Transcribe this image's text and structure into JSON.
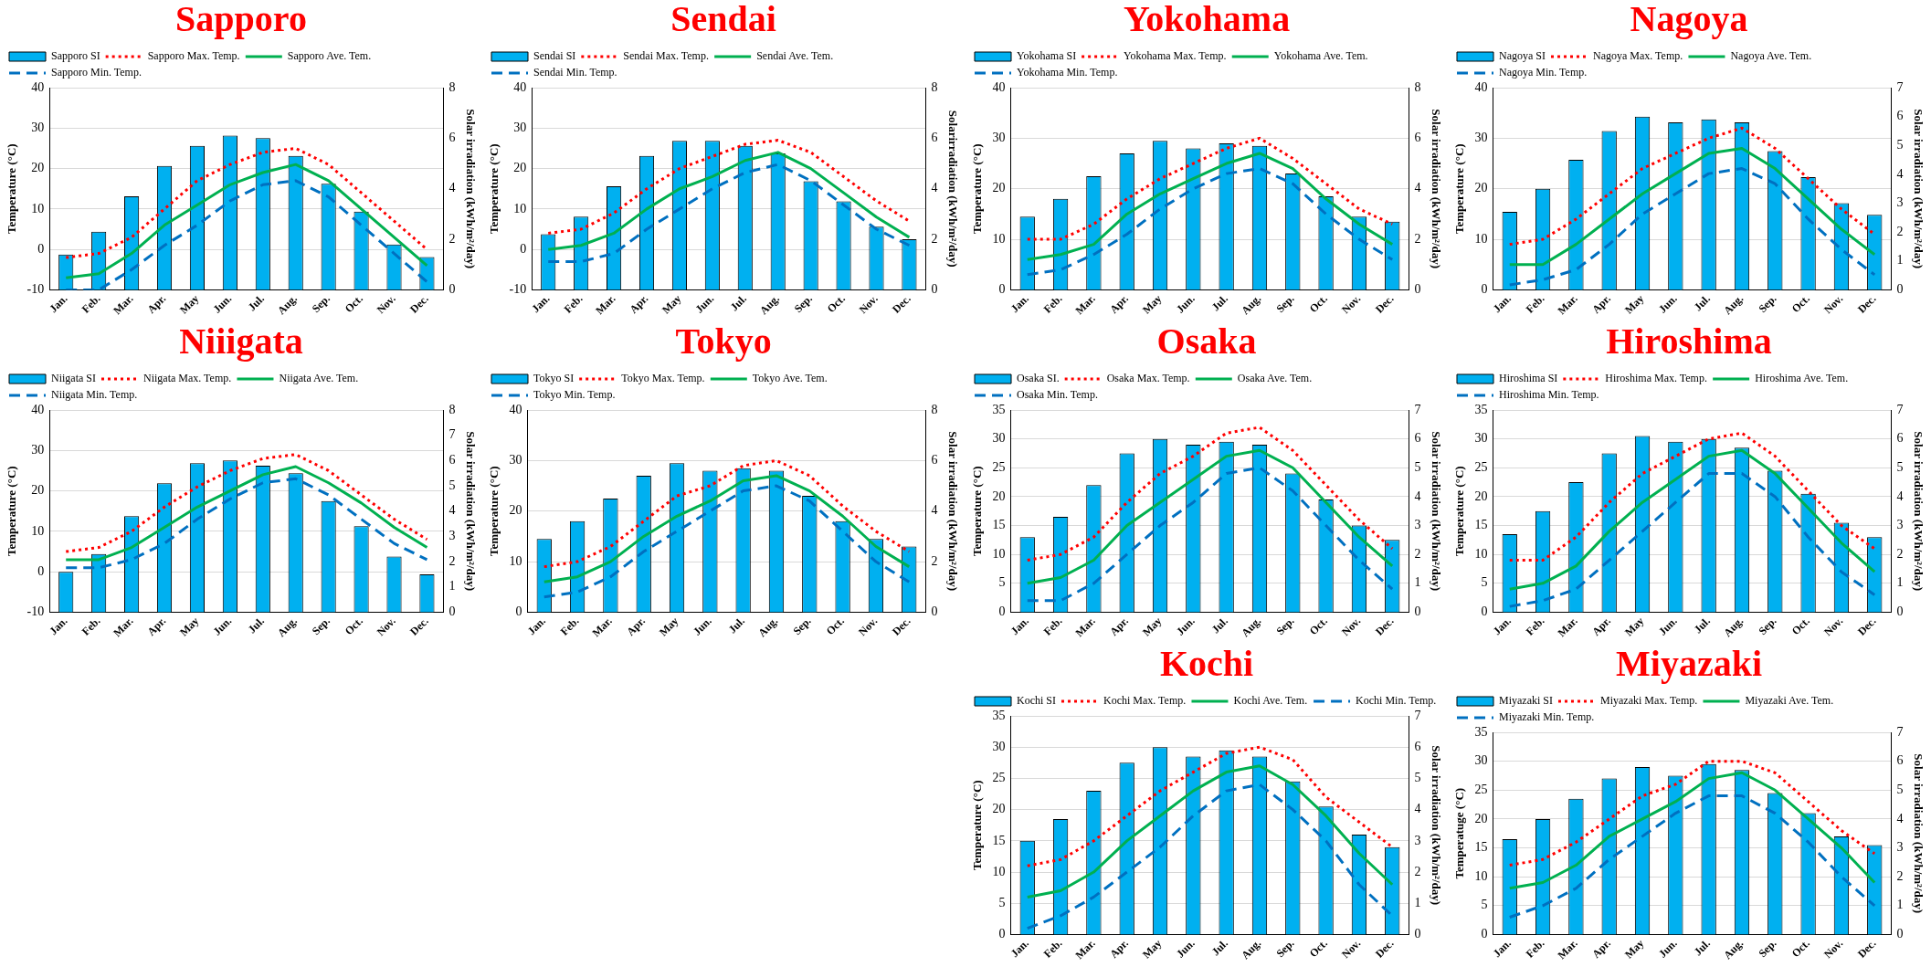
{
  "chart_data": [
    {
      "type": "bar",
      "title": "Sapporo",
      "categories": [
        "Jan.",
        "Feb.",
        "Mar.",
        "Apr.",
        "May",
        "Jun.",
        "Jul.",
        "Aug.",
        "Sep.",
        "Oct.",
        "Nov.",
        "Dec."
      ],
      "ylabel": "Temperature (°C)",
      "y2label": "Solar irradiation (kWh/m²/day)",
      "ylim": [
        -10,
        40
      ],
      "yticks": [
        -10,
        0,
        10,
        20,
        30,
        40
      ],
      "y2lim": [
        0,
        8
      ],
      "y2ticks": [
        0,
        2,
        4,
        6,
        8
      ],
      "grid": "y",
      "legend": "top",
      "series": [
        {
          "name": "Sapporo SI",
          "axis": "y2",
          "color": "#00b0f0",
          "values": [
            1.4,
            2.3,
            3.7,
            4.9,
            5.7,
            6.1,
            6.0,
            5.3,
            4.2,
            3.1,
            1.8,
            1.3
          ]
        },
        {
          "name": "Sapporo Max. Temp.",
          "type": "line",
          "line_style": "dotted",
          "color": "#ff0000",
          "values": [
            -2,
            -1,
            3,
            10,
            17,
            21,
            24,
            25,
            21,
            14,
            7,
            0
          ]
        },
        {
          "name": "Sapporo Ave. Tem.",
          "type": "line",
          "line_style": "solid",
          "color": "#00b050",
          "values": [
            -7,
            -6,
            -1,
            6,
            11,
            16,
            19,
            21,
            17,
            10,
            3,
            -4
          ]
        },
        {
          "name": "Sapporo Min. Temp.",
          "type": "line",
          "line_style": "dashed",
          "color": "#0070c0",
          "values": [
            -10,
            -10,
            -5,
            1,
            6,
            12,
            16,
            17,
            13,
            6,
            -1,
            -8
          ]
        }
      ]
    },
    {
      "type": "bar",
      "title": "Sendai",
      "categories": [
        "Jan.",
        "Feb.",
        "Mar.",
        "Apr.",
        "May",
        "Jun.",
        "Jul.",
        "Aug.",
        "Sep.",
        "Oct.",
        "Nov.",
        "Dec."
      ],
      "ylabel": "Temperature (°C)",
      "y2label": "Solarirradiation (kWh/m²/day)",
      "ylim": [
        -10,
        40
      ],
      "yticks": [
        -10,
        0,
        10,
        20,
        30,
        40
      ],
      "y2lim": [
        0,
        8
      ],
      "y2ticks": [
        0,
        2,
        4,
        6,
        8
      ],
      "grid": "y",
      "legend": "top",
      "series": [
        {
          "name": "Sendai SI",
          "axis": "y2",
          "color": "#00b0f0",
          "values": [
            2.2,
            2.9,
            4.1,
            5.3,
            5.9,
            5.9,
            5.7,
            5.4,
            4.3,
            3.5,
            2.5,
            2.0
          ]
        },
        {
          "name": "Sendai Max. Temp.",
          "type": "line",
          "line_style": "dotted",
          "color": "#ff0000",
          "values": [
            4,
            5,
            9,
            15,
            20,
            23,
            26,
            27,
            24,
            18,
            12,
            7
          ]
        },
        {
          "name": "Sendai Ave. Tem.",
          "type": "line",
          "line_style": "solid",
          "color": "#00b050",
          "values": [
            0,
            1,
            4,
            10,
            15,
            18,
            22,
            24,
            20,
            14,
            8,
            3
          ]
        },
        {
          "name": "Sendai Min. Temp.",
          "type": "line",
          "line_style": "dashed",
          "color": "#0070c0",
          "values": [
            -3,
            -3,
            -1,
            5,
            10,
            15,
            19,
            21,
            17,
            11,
            5,
            1
          ]
        }
      ]
    },
    {
      "type": "bar",
      "title": "Yokohama",
      "categories": [
        "Jan.",
        "Feb.",
        "Mar.",
        "Apr.",
        "May",
        "Jun.",
        "Jul.",
        "Aug.",
        "Sep.",
        "Oct.",
        "Nov.",
        "Dec."
      ],
      "ylabel": "Temperature (°C)",
      "y2label": "Solar irradiation (kWh/m²/day)",
      "ylim": [
        0,
        40
      ],
      "yticks": [
        0,
        10,
        20,
        30,
        40
      ],
      "y2lim": [
        0,
        8
      ],
      "y2ticks": [
        0,
        2,
        4,
        6,
        8
      ],
      "grid": "y",
      "legend": "top",
      "series": [
        {
          "name": "Yokohama SI",
          "axis": "y2",
          "color": "#00b0f0",
          "values": [
            2.9,
            3.6,
            4.5,
            5.4,
            5.9,
            5.6,
            5.8,
            5.7,
            4.6,
            3.7,
            2.9,
            2.7
          ]
        },
        {
          "name": "Yokohama Max. Temp.",
          "type": "line",
          "line_style": "dotted",
          "color": "#ff0000",
          "values": [
            10,
            10,
            13,
            18,
            22,
            25,
            28,
            30,
            26,
            21,
            16,
            13
          ]
        },
        {
          "name": "Yokohama Ave. Tem.",
          "type": "line",
          "line_style": "solid",
          "color": "#00b050",
          "values": [
            6,
            7,
            9,
            15,
            19,
            22,
            25,
            27,
            24,
            18,
            13,
            9
          ]
        },
        {
          "name": "Yokohama Min. Temp.",
          "type": "line",
          "line_style": "dashed",
          "color": "#0070c0",
          "values": [
            3,
            4,
            7,
            11,
            16,
            20,
            23,
            24,
            21,
            15,
            10,
            6
          ]
        }
      ]
    },
    {
      "type": "bar",
      "title": "Nagoya",
      "categories": [
        "Jan.",
        "Feb.",
        "Mar.",
        "Apr.",
        "May",
        "Jun.",
        "Jul.",
        "Aug.",
        "Sep.",
        "Oct.",
        "Nov.",
        "Dec."
      ],
      "ylabel": "Temperature (°C)",
      "y2label": "Solar irradiation (kWh/m²/day)",
      "ylim": [
        0,
        40
      ],
      "yticks": [
        0,
        10,
        20,
        30,
        40
      ],
      "y2lim": [
        0,
        7
      ],
      "y2ticks": [
        0,
        1,
        2,
        3,
        4,
        5,
        6,
        7
      ],
      "grid": "y",
      "legend": "top",
      "series": [
        {
          "name": "Nagoya SI",
          "axis": "y2",
          "color": "#00b0f0",
          "values": [
            2.7,
            3.5,
            4.5,
            5.5,
            6.0,
            5.8,
            5.9,
            5.8,
            4.8,
            3.9,
            3.0,
            2.6
          ]
        },
        {
          "name": "Nagoya Max. Temp.",
          "type": "line",
          "line_style": "dotted",
          "color": "#ff0000",
          "values": [
            9,
            10,
            14,
            19,
            24,
            27,
            30,
            32,
            28,
            22,
            16,
            11
          ]
        },
        {
          "name": "Nagoya Ave. Tem.",
          "type": "line",
          "line_style": "solid",
          "color": "#00b050",
          "values": [
            5,
            5,
            9,
            14,
            19,
            23,
            27,
            28,
            24,
            18,
            12,
            7
          ]
        },
        {
          "name": "Nagoya Min. Temp.",
          "type": "line",
          "line_style": "dashed",
          "color": "#0070c0",
          "values": [
            1,
            2,
            4,
            9,
            15,
            19,
            23,
            24,
            21,
            14,
            8,
            3
          ]
        }
      ]
    },
    {
      "type": "bar",
      "title": "Niiigata",
      "categories": [
        "Jan.",
        "Feb.",
        "Mar.",
        "Apr.",
        "May",
        "Jun.",
        "Jul.",
        "Aug.",
        "Sep.",
        "Oct.",
        "Nov.",
        "Dec."
      ],
      "ylabel": "Temperature (°C)",
      "y2label": "Solar irradiation (kWh/m²/day)",
      "ylim": [
        -10,
        40
      ],
      "yticks": [
        -10,
        0,
        10,
        20,
        30,
        40
      ],
      "y2lim": [
        0,
        8
      ],
      "y2ticks": [
        0,
        1,
        2,
        3,
        4,
        5,
        6,
        7,
        8
      ],
      "grid": "y",
      "legend": "top",
      "series": [
        {
          "name": "Niigata SI",
          "axis": "y2",
          "color": "#00b0f0",
          "values": [
            1.6,
            2.3,
            3.8,
            5.1,
            5.9,
            6.0,
            5.8,
            5.5,
            4.4,
            3.4,
            2.2,
            1.5
          ]
        },
        {
          "name": "Niigata Max. Temp.",
          "type": "line",
          "line_style": "dotted",
          "color": "#ff0000",
          "values": [
            5,
            6,
            10,
            16,
            21,
            25,
            28,
            29,
            25,
            19,
            13,
            8
          ]
        },
        {
          "name": "Niigata Ave. Tem.",
          "type": "line",
          "line_style": "solid",
          "color": "#00b050",
          "values": [
            3,
            3,
            6,
            11,
            16,
            20,
            24,
            26,
            22,
            17,
            11,
            6
          ]
        },
        {
          "name": "Niigata Min. Temp.",
          "type": "line",
          "line_style": "dashed",
          "color": "#0070c0",
          "values": [
            1,
            1,
            3,
            7,
            13,
            18,
            22,
            23,
            19,
            13,
            7,
            3
          ]
        }
      ]
    },
    {
      "type": "bar",
      "title": "Tokyo",
      "categories": [
        "Jan.",
        "Feb.",
        "Mar.",
        "Apr.",
        "May",
        "Jun.",
        "Jul.",
        "Aug.",
        "Sep.",
        "Oct.",
        "Nov.",
        "Dec."
      ],
      "ylabel": "Temperature (°C)",
      "y2label": "Solar irradiation (kWh/m²/day)",
      "ylim": [
        0,
        40
      ],
      "yticks": [
        0,
        10,
        20,
        30,
        40
      ],
      "y2lim": [
        0,
        8
      ],
      "y2ticks": [
        0,
        2,
        4,
        6,
        8
      ],
      "grid": "y",
      "legend": "top",
      "series": [
        {
          "name": "Tokyo SI",
          "axis": "y2",
          "color": "#00b0f0",
          "values": [
            2.9,
            3.6,
            4.5,
            5.4,
            5.9,
            5.6,
            5.7,
            5.6,
            4.6,
            3.6,
            2.9,
            2.6
          ]
        },
        {
          "name": "Tokyo Max. Temp.",
          "type": "line",
          "line_style": "dotted",
          "color": "#ff0000",
          "values": [
            9,
            10,
            13,
            18,
            23,
            25,
            29,
            30,
            27,
            21,
            16,
            12
          ]
        },
        {
          "name": "Tokyo Ave. Tem.",
          "type": "line",
          "line_style": "solid",
          "color": "#00b050",
          "values": [
            6,
            7,
            10,
            15,
            19,
            22,
            26,
            27,
            24,
            19,
            13,
            9
          ]
        },
        {
          "name": "Tokyo Min. Temp.",
          "type": "line",
          "line_style": "dashed",
          "color": "#0070c0",
          "values": [
            3,
            4,
            7,
            12,
            16,
            20,
            24,
            25,
            22,
            16,
            10,
            6
          ]
        }
      ]
    },
    {
      "type": "bar",
      "title": "Osaka",
      "categories": [
        "Jan.",
        "Feb.",
        "Mar.",
        "Apr.",
        "May",
        "Jun.",
        "Jul.",
        "Aug.",
        "Sep.",
        "Oct.",
        "Nov.",
        "Dec."
      ],
      "ylabel": "Temperature (°C)",
      "y2label": "Solar irradiation (kWh/m²/day)",
      "ylim": [
        0,
        35
      ],
      "yticks": [
        0,
        5,
        10,
        15,
        20,
        25,
        30,
        35
      ],
      "y2lim": [
        0,
        7
      ],
      "y2ticks": [
        0,
        1,
        2,
        3,
        4,
        5,
        6,
        7
      ],
      "grid": "y",
      "legend": "top",
      "series": [
        {
          "name": "Osaka SI.",
          "axis": "y2",
          "color": "#00b0f0",
          "values": [
            2.6,
            3.3,
            4.4,
            5.5,
            6.0,
            5.8,
            5.9,
            5.8,
            4.8,
            3.9,
            3.0,
            2.5
          ]
        },
        {
          "name": "Osaka Max. Temp.",
          "type": "line",
          "line_style": "dotted",
          "color": "#ff0000",
          "values": [
            9,
            10,
            13,
            19,
            24,
            27,
            31,
            32,
            28,
            22,
            16,
            11
          ]
        },
        {
          "name": "Osaka Ave. Tem.",
          "type": "line",
          "line_style": "solid",
          "color": "#00b050",
          "values": [
            5,
            6,
            9,
            15,
            19,
            23,
            27,
            28,
            25,
            19,
            13,
            8
          ]
        },
        {
          "name": "Osaka Min. Temp.",
          "type": "line",
          "line_style": "dashed",
          "color": "#0070c0",
          "values": [
            2,
            2,
            5,
            10,
            15,
            19,
            24,
            25,
            21,
            15,
            9,
            4
          ]
        }
      ]
    },
    {
      "type": "bar",
      "title": "Hiroshima",
      "categories": [
        "Jan.",
        "Feb.",
        "Mar.",
        "Apr.",
        "May",
        "Jun.",
        "Jul.",
        "Aug.",
        "Sep.",
        "Oct.",
        "Nov.",
        "Dec."
      ],
      "ylabel": "Temperature (°C)",
      "y2label": "Solar irradiation (kWh/m²/day)",
      "ylim": [
        0,
        35
      ],
      "yticks": [
        0,
        5,
        10,
        15,
        20,
        25,
        30,
        35
      ],
      "y2lim": [
        0,
        7
      ],
      "y2ticks": [
        0,
        1,
        2,
        3,
        4,
        5,
        6,
        7
      ],
      "grid": "y",
      "legend": "top",
      "series": [
        {
          "name": "Hiroshima SI",
          "axis": "y2",
          "color": "#00b0f0",
          "values": [
            2.7,
            3.5,
            4.5,
            5.5,
            6.1,
            5.9,
            6.0,
            5.7,
            4.9,
            4.1,
            3.1,
            2.6
          ]
        },
        {
          "name": "Hiroshima Max. Temp.",
          "type": "line",
          "line_style": "dotted",
          "color": "#ff0000",
          "values": [
            9,
            9,
            13,
            19,
            24,
            27,
            30,
            31,
            27,
            21,
            15,
            11
          ]
        },
        {
          "name": "Hiroshima Ave. Tem.",
          "type": "line",
          "line_style": "solid",
          "color": "#00b050",
          "values": [
            4,
            5,
            8,
            14,
            19,
            23,
            27,
            28,
            24,
            18,
            12,
            7
          ]
        },
        {
          "name": "Hiroshima Min. Temp.",
          "type": "line",
          "line_style": "dashed",
          "color": "#0070c0",
          "values": [
            1,
            2,
            4,
            9,
            14,
            19,
            24,
            24,
            20,
            13,
            7,
            3
          ]
        }
      ]
    },
    {
      "type": "bar",
      "title": "Kochi",
      "categories": [
        "Jan.",
        "Feb.",
        "Mar.",
        "Apr.",
        "May",
        "Jun.",
        "Jul.",
        "Aug.",
        "Sep.",
        "Oct.",
        "Nov.",
        "Dec."
      ],
      "ylabel": "Temperature (°C)",
      "y2label": "Solar irradiation (kWh/m²/day)",
      "ylim": [
        0,
        35
      ],
      "yticks": [
        0,
        5,
        10,
        15,
        20,
        25,
        30,
        35
      ],
      "y2lim": [
        0,
        7
      ],
      "y2ticks": [
        0,
        1,
        2,
        3,
        4,
        5,
        6,
        7
      ],
      "grid": "y",
      "legend": "top",
      "series": [
        {
          "name": "Kochi SI",
          "axis": "y2",
          "color": "#00b0f0",
          "values": [
            3.0,
            3.7,
            4.6,
            5.5,
            6.0,
            5.7,
            5.9,
            5.7,
            4.9,
            4.1,
            3.2,
            2.8
          ]
        },
        {
          "name": "Kochi Max. Temp.",
          "type": "line",
          "line_style": "dotted",
          "color": "#ff0000",
          "values": [
            11,
            12,
            15,
            19,
            23,
            26,
            29,
            30,
            28,
            22,
            18,
            14
          ]
        },
        {
          "name": "Kochi Ave. Tem.",
          "type": "line",
          "line_style": "solid",
          "color": "#00b050",
          "values": [
            6,
            7,
            10,
            15,
            19,
            23,
            26,
            27,
            24,
            19,
            13,
            8
          ]
        },
        {
          "name": "Kochi Min. Temp.",
          "type": "line",
          "line_style": "dashed",
          "color": "#0070c0",
          "values": [
            1,
            3,
            6,
            10,
            14,
            19,
            23,
            24,
            20,
            15,
            8,
            3
          ]
        }
      ]
    },
    {
      "type": "bar",
      "title": "Miyazaki",
      "categories": [
        "Jan.",
        "Feb.",
        "Mar.",
        "Apr.",
        "May",
        "Jun.",
        "Jul.",
        "Aug.",
        "Sep.",
        "Oct.",
        "Nov.",
        "Dec."
      ],
      "ylabel": "Temperatuge (°C)",
      "y2label": "Solar irradiation (kWh/m²/day)",
      "ylim": [
        0,
        35
      ],
      "yticks": [
        0,
        5,
        10,
        15,
        20,
        25,
        30,
        35
      ],
      "y2lim": [
        0,
        7
      ],
      "y2ticks": [
        0,
        1,
        2,
        3,
        4,
        5,
        6,
        7
      ],
      "grid": "y",
      "legend": "top",
      "series": [
        {
          "name": "Miyazaki SI",
          "axis": "y2",
          "color": "#00b0f0",
          "values": [
            3.3,
            4.0,
            4.7,
            5.4,
            5.8,
            5.5,
            5.9,
            5.7,
            4.9,
            4.2,
            3.4,
            3.1
          ]
        },
        {
          "name": "Miyazaki Max. Temp.",
          "type": "line",
          "line_style": "dotted",
          "color": "#ff0000",
          "values": [
            12,
            13,
            16,
            20,
            24,
            26,
            30,
            30,
            28,
            23,
            18,
            14
          ]
        },
        {
          "name": "Miyazaki Ave. Tem.",
          "type": "line",
          "line_style": "solid",
          "color": "#00b050",
          "values": [
            8,
            9,
            12,
            17,
            20,
            23,
            27,
            28,
            25,
            20,
            15,
            9
          ]
        },
        {
          "name": "Miyazaki Min. Temp.",
          "type": "line",
          "line_style": "dashed",
          "color": "#0070c0",
          "values": [
            3,
            5,
            8,
            13,
            17,
            21,
            24,
            24,
            21,
            16,
            10,
            5
          ]
        }
      ]
    }
  ]
}
